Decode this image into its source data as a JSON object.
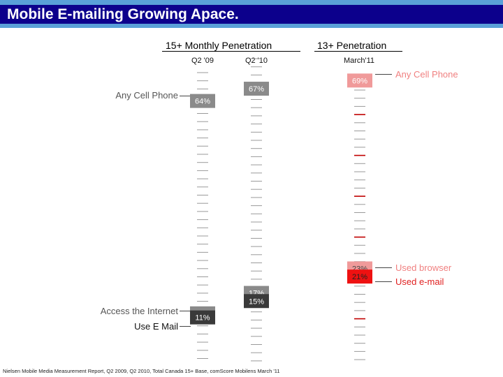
{
  "title": "Mobile E-mailing Growing Apace.",
  "footnote": "Nielsen Mobile Media Measurement Report, Q2 2009, Q2 2010, Total Canada 15+ Base, comScore Mobilens March '11",
  "colors": {
    "title_band": "#0c008c",
    "title_accent": "#5aa0d8",
    "cell_box": "#8a8a8a",
    "browser_box": "#f09a9a",
    "email_box": "#ee1111",
    "dark_box": "#3a3a3a",
    "pink_label": "#f08080",
    "red_label": "#e02020"
  },
  "chart_data": [
    {
      "type": "bar",
      "title": "15+ Monthly Penetration",
      "categories": [
        "Q2 '09",
        "Q2 '10"
      ],
      "series": [
        {
          "name": "Any Cell Phone",
          "values": [
            64,
            67
          ],
          "labels": [
            "64%",
            "67%"
          ]
        },
        {
          "name": "Access the Internet",
          "values": [
            12,
            17
          ],
          "labels": [
            "12%",
            "17%"
          ]
        },
        {
          "name": "Use E Mail",
          "values": [
            11,
            15
          ],
          "labels": [
            "11%",
            "15%"
          ]
        }
      ],
      "ylim": [
        0,
        100
      ]
    },
    {
      "type": "bar",
      "title": "13+ Penetration",
      "categories": [
        "March'11"
      ],
      "series": [
        {
          "name": "Any Cell Phone",
          "values": [
            69
          ],
          "labels": [
            "69%"
          ]
        },
        {
          "name": "Used browser",
          "values": [
            23
          ],
          "labels": [
            "23%"
          ]
        },
        {
          "name": "Used e-mail",
          "values": [
            21
          ],
          "labels": [
            "21%"
          ]
        }
      ],
      "ylim": [
        0,
        100
      ]
    }
  ]
}
